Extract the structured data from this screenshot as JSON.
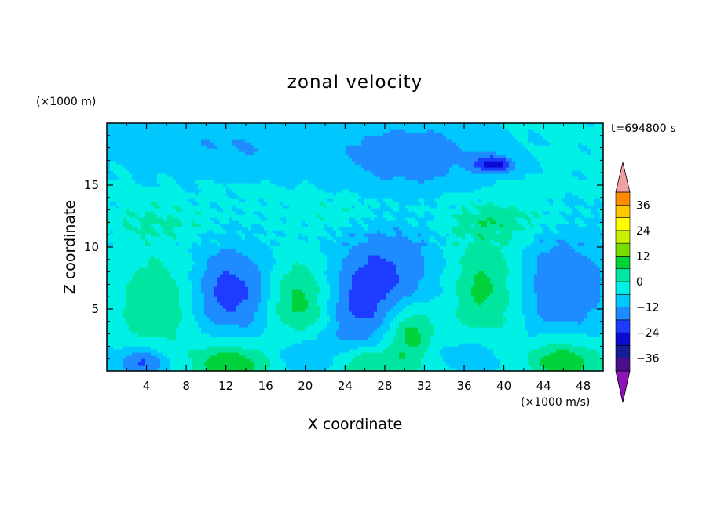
{
  "chart_data": {
    "type": "heatmap",
    "title": "zonal velocity",
    "xlabel": "X coordinate",
    "ylabel": "Z coordinate",
    "x_unit": "(×1000 m/s)",
    "y_unit": "(×1000 m)",
    "time_label": "t=694800 s",
    "xlim": [
      0,
      50
    ],
    "ylim": [
      0,
      20
    ],
    "x_ticks": [
      4,
      8,
      12,
      16,
      20,
      24,
      28,
      32,
      36,
      40,
      44,
      48
    ],
    "y_ticks": [
      5,
      10,
      15
    ],
    "colorbar": {
      "ticks": [
        36,
        24,
        12,
        0,
        -12,
        -24,
        -36
      ],
      "levels": [
        -42,
        -36,
        -30,
        -24,
        -18,
        -12,
        -6,
        0,
        6,
        12,
        18,
        24,
        30,
        36,
        42
      ],
      "colors": [
        "#4B0F8C",
        "#141E96",
        "#0A0AD2",
        "#1E3CFF",
        "#1E8CFF",
        "#00C8FF",
        "#00F0E6",
        "#00E6A0",
        "#00D23C",
        "#78DC00",
        "#C8F000",
        "#FFFF00",
        "#FFC800",
        "#FF8C00",
        "#FF3200",
        "#E60000"
      ],
      "under_color": "#8C14B4",
      "over_color": "#F0A0A0"
    },
    "features": [
      {
        "x": 5,
        "z": 5.5,
        "value": 11,
        "sx": 2.6,
        "sz": 2.6
      },
      {
        "x": 12.5,
        "z": 6.5,
        "value": -16,
        "sx": 2.7,
        "sz": 2.6
      },
      {
        "x": 19.5,
        "z": 5.5,
        "value": 14,
        "sx": 2.1,
        "sz": 2.4
      },
      {
        "x": 25.5,
        "z": 5,
        "value": -12,
        "sx": 2.6,
        "sz": 3
      },
      {
        "x": 30.5,
        "z": 3.2,
        "value": 15,
        "sx": 1.8,
        "sz": 1.6
      },
      {
        "x": 29,
        "z": 8.5,
        "value": -11,
        "sx": 3.5,
        "sz": 3
      },
      {
        "x": 38,
        "z": 6.8,
        "value": 13,
        "sx": 2.5,
        "sz": 3.4
      },
      {
        "x": 46,
        "z": 7,
        "value": -13,
        "sx": 3.3,
        "sz": 3
      },
      {
        "x": 12.5,
        "z": 0.6,
        "value": 17,
        "sx": 2.8,
        "sz": 1.3
      },
      {
        "x": 26.5,
        "z": 0.6,
        "value": 14,
        "sx": 2.8,
        "sz": 1.1
      },
      {
        "x": 46,
        "z": 0.8,
        "value": 17,
        "sx": 2.6,
        "sz": 1.3
      },
      {
        "x": 3.5,
        "z": 0.7,
        "value": -15,
        "sx": 1.8,
        "sz": 0.9
      },
      {
        "x": 20,
        "z": 1.5,
        "value": -8,
        "sx": 2.5,
        "sz": 1.4
      },
      {
        "x": 37,
        "z": 1.5,
        "value": -7,
        "sx": 2.5,
        "sz": 1.4
      },
      {
        "x": 31,
        "z": 17.5,
        "value": -12,
        "sx": 5,
        "sz": 1.8
      },
      {
        "x": 39,
        "z": 16.7,
        "value": -20,
        "sx": 1.4,
        "sz": 0.5
      },
      {
        "x": 12,
        "z": 18,
        "value": -7,
        "sx": 8,
        "sz": 1.5
      },
      {
        "x": 5,
        "z": 12,
        "value": 6,
        "sx": 4,
        "sz": 1
      },
      {
        "x": 40,
        "z": 12.2,
        "value": 7,
        "sx": 4,
        "sz": 1
      },
      {
        "x": 25,
        "z": 12.8,
        "value": 4,
        "sx": 6,
        "sz": 1
      }
    ],
    "base_value": -5,
    "grid": false,
    "legend": "colorbar right"
  }
}
